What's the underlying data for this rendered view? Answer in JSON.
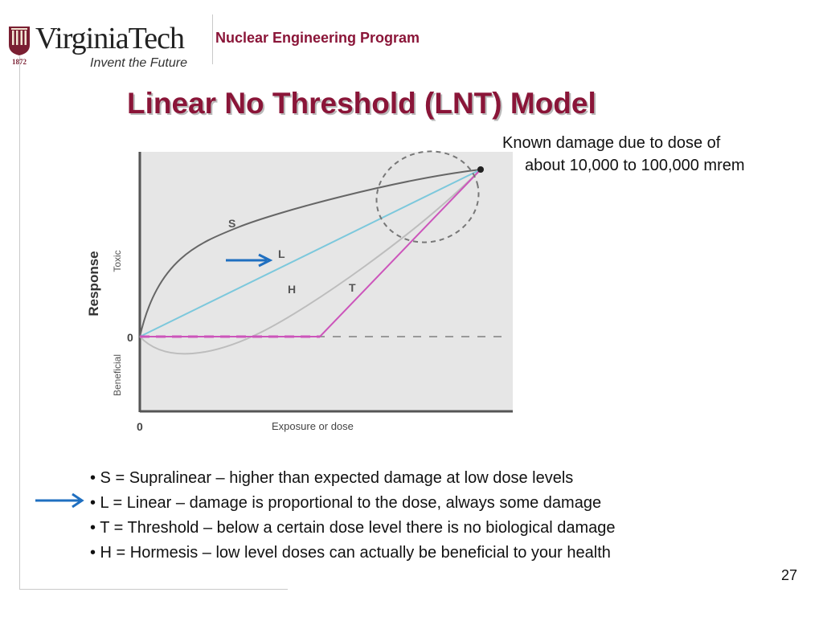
{
  "header": {
    "logo_text": "VirginiaTech",
    "logo_tagline": "Invent the Future",
    "logo_year": "1872",
    "program": "Nuclear Engineering Program"
  },
  "slide": {
    "title": "Linear No Threshold (LNT) Model",
    "annotation": {
      "line1": "Known damage due to dose of",
      "line2": "about 10,000 to 100,000 mrem"
    },
    "bullets": [
      "• S = Supralinear – higher than expected damage at low dose levels",
      "• L =  Linear – damage is proportional to the dose, always some damage",
      "• T = Threshold – below a certain dose level there is no biological damage",
      "• H = Hormesis – low level doses can actually be beneficial to your health"
    ],
    "page_number": "27"
  },
  "diagram": {
    "y_label": "Response",
    "y_toxic_label": "Toxic",
    "y_beneficial_label": "Beneficial",
    "y_zero_label": "0",
    "x_zero_label": "0",
    "x_label": "Exposure or dose",
    "curves": [
      {
        "label": "S",
        "color": "#666666"
      },
      {
        "label": "L",
        "color": "#7cc8dc"
      },
      {
        "label": "H",
        "color": "#bdbdbd"
      },
      {
        "label": "T",
        "color": "#cc55bb"
      }
    ],
    "arrow_color": "#1f6fc0"
  }
}
